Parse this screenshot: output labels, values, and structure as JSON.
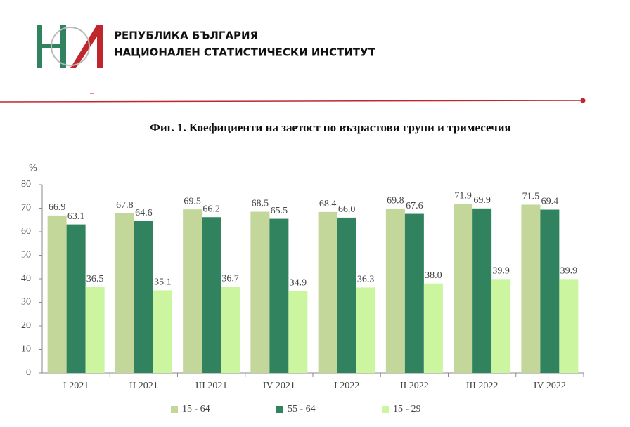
{
  "header": {
    "line1": "РЕПУБЛИКА БЪЛГАРИЯ",
    "line2": "НАЦИОНАЛЕН СТАТИСТИЧЕСКИ ИНСТИТУТ"
  },
  "chart_data": {
    "type": "bar",
    "title": "Фиг. 1. Коефициенти на заетост по възрастови групи и тримесечия",
    "y_label": "%",
    "categories": [
      "I 2021",
      "II 2021",
      "III 2021",
      "IV 2021",
      "I 2022",
      "II 2022",
      "III 2022",
      "IV 2022"
    ],
    "series": [
      {
        "name": "15 - 64",
        "color": "#c4d79b",
        "values": [
          66.9,
          67.8,
          69.5,
          68.5,
          68.4,
          69.8,
          71.9,
          71.5
        ],
        "value_labels": [
          "66.9",
          "67.8",
          "69.5",
          "68.5",
          "68.4",
          "69.8",
          "71.9",
          "71.5"
        ]
      },
      {
        "name": "55 - 64",
        "color": "#31835f",
        "values": [
          63.1,
          64.6,
          66.2,
          65.5,
          66.0,
          67.6,
          69.9,
          69.4
        ],
        "value_labels": [
          "63.1",
          "64.6",
          "66.2",
          "65.5",
          "66.0",
          "67.6",
          "69.9",
          "69.4"
        ]
      },
      {
        "name": "15 - 29",
        "color": "#ccf5a0",
        "values": [
          36.5,
          35.1,
          36.7,
          34.9,
          36.3,
          38.0,
          39.9,
          39.9
        ],
        "value_labels": [
          "36.5",
          "35.1",
          "36.7",
          "34.9",
          "36.3",
          "38.0",
          "39.9",
          "39.9"
        ]
      }
    ],
    "ylim": [
      0,
      80
    ],
    "yticks": [
      0,
      10,
      20,
      30,
      40,
      50,
      60,
      70,
      80
    ],
    "grid": false,
    "legend": "bottom"
  }
}
